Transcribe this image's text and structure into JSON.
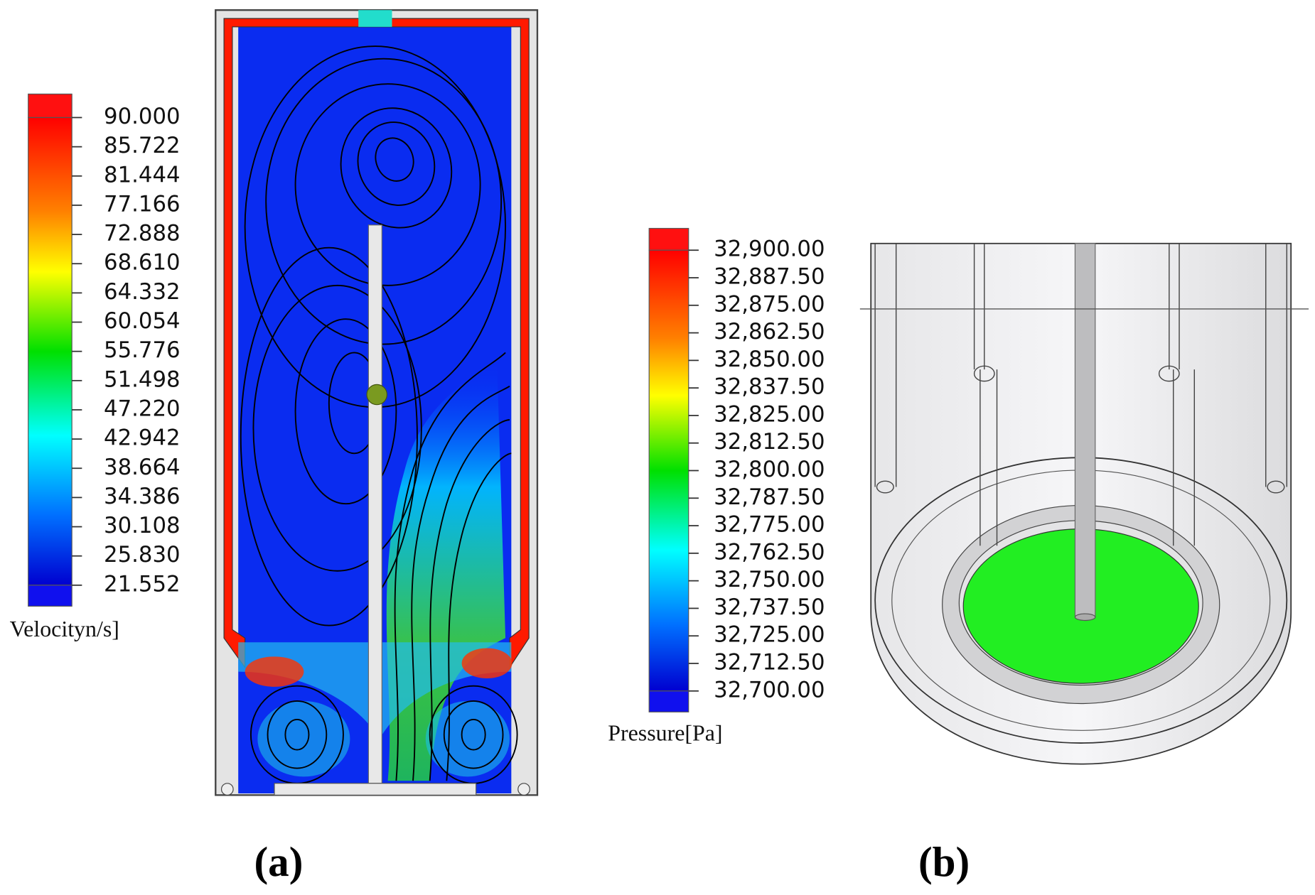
{
  "panel_a": {
    "legend": {
      "title": "Velocityn/s]",
      "ticks": [
        "90.000",
        "85.722",
        "81.444",
        "77.166",
        "72.888",
        "68.610",
        "64.332",
        "60.054",
        "55.776",
        "51.498",
        "47.220",
        "42.942",
        "38.664",
        "34.386",
        "30.108",
        "25.830",
        "21.552"
      ]
    },
    "label": "(a)"
  },
  "panel_b": {
    "legend": {
      "title": "Pressure[Pa]",
      "ticks": [
        "32,900.00",
        "32,887.50",
        "32,875.00",
        "32,862.50",
        "32,850.00",
        "32,837.50",
        "32,825.00",
        "32,812.50",
        "32,800.00",
        "32,787.50",
        "32,775.00",
        "32,762.50",
        "32,750.00",
        "32,737.50",
        "32,725.00",
        "32,712.50",
        "32,700.00"
      ]
    },
    "label": "(b)"
  }
}
